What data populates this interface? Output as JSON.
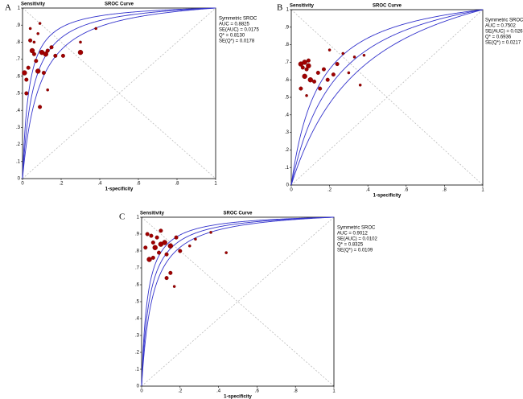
{
  "chart_data": [
    {
      "type": "scatter",
      "panel": "A",
      "title": "SROC Curve",
      "y_label": "Sensitivity",
      "x_label": "1-specificity",
      "legend_title": "Symmetric SROC",
      "stats": [
        {
          "value": 0.8825,
          "label": "AUC = 0.8825"
        },
        {
          "value": 0.0175,
          "label": "SE(AUC) = 0.0175"
        },
        {
          "value": 0.813,
          "label": "Q* = 0.8130"
        },
        {
          "value": 0.0178,
          "label": "SE(Q*) = 0.0178"
        }
      ],
      "x": [
        0.01,
        0.02,
        0.03,
        0.04,
        0.04,
        0.05,
        0.06,
        0.07,
        0.08,
        0.08,
        0.09,
        0.09,
        0.1,
        0.11,
        0.12,
        0.13,
        0.13,
        0.15,
        0.17,
        0.21,
        0.3,
        0.3,
        0.02,
        0.06,
        0.38
      ],
      "values": [
        0.62,
        0.5,
        0.65,
        0.81,
        0.88,
        0.75,
        0.73,
        0.69,
        0.63,
        0.85,
        0.91,
        0.42,
        0.74,
        0.62,
        0.73,
        0.75,
        0.52,
        0.77,
        0.72,
        0.72,
        0.74,
        0.8,
        0.58,
        0.8,
        0.88
      ],
      "sizes": [
        3,
        2,
        2,
        2,
        1,
        3,
        2,
        2,
        3,
        1,
        1,
        2,
        3,
        2,
        3,
        2,
        1,
        2,
        2,
        2,
        3,
        1,
        2,
        1,
        1
      ],
      "xlim": [
        0,
        1
      ],
      "ylim": [
        0,
        1
      ],
      "color": "#a00000",
      "curve_color": "#3333cc",
      "xticks": [
        0,
        {
          "value": 0.2,
          "label": ".2"
        },
        {
          "value": 0.4,
          "label": ".4"
        },
        {
          "value": 0.6,
          "label": ".6"
        },
        {
          "value": 0.8,
          "label": ".8"
        },
        1
      ],
      "yticks": [
        0,
        {
          "value": 0.1,
          "label": ".1"
        },
        {
          "value": 0.2,
          "label": ".2"
        },
        {
          "value": 0.3,
          "label": ".3"
        },
        {
          "value": 0.4,
          "label": ".4"
        },
        {
          "value": 0.5,
          "label": ".5"
        },
        {
          "value": 0.6,
          "label": ".6"
        },
        {
          "value": 0.7,
          "label": ".7"
        },
        {
          "value": 0.8,
          "label": ".8"
        },
        {
          "value": 0.9,
          "label": ".9"
        },
        1
      ]
    },
    {
      "type": "scatter",
      "panel": "B",
      "title": "SROC Curve",
      "y_label": "Sensitivity",
      "x_label": "1-specificity",
      "legend_title": "Symmetric SROC",
      "stats": [
        {
          "value": 0.7502,
          "label": "AUC = 0.7502"
        },
        {
          "value": 0.0263,
          "label": "SE(AUC) = 0.0263"
        },
        {
          "value": 0.6936,
          "label": "Q* = 0.6936"
        },
        {
          "value": 0.0217,
          "label": "SE(Q*) = 0.0217"
        }
      ],
      "x": [
        0.05,
        0.06,
        0.07,
        0.08,
        0.09,
        0.05,
        0.07,
        0.1,
        0.12,
        0.14,
        0.08,
        0.15,
        0.17,
        0.19,
        0.2,
        0.22,
        0.24,
        0.27,
        0.3,
        0.33,
        0.36,
        0.38,
        0.09
      ],
      "values": [
        0.69,
        0.67,
        0.7,
        0.66,
        0.68,
        0.55,
        0.62,
        0.6,
        0.59,
        0.64,
        0.51,
        0.55,
        0.66,
        0.6,
        0.77,
        0.63,
        0.69,
        0.75,
        0.64,
        0.73,
        0.57,
        0.74,
        0.71
      ],
      "sizes": [
        3,
        2,
        3,
        2,
        3,
        2,
        3,
        3,
        2,
        2,
        1,
        2,
        2,
        2,
        1,
        2,
        2,
        1,
        1,
        1,
        1,
        1,
        2
      ],
      "xlim": [
        0,
        1
      ],
      "ylim": [
        0,
        1
      ],
      "color": "#a00000",
      "curve_color": "#3333cc",
      "xticks": [
        0,
        {
          "value": 0.2,
          "label": ".2"
        },
        {
          "value": 0.4,
          "label": ".4"
        },
        {
          "value": 0.6,
          "label": ".6"
        },
        {
          "value": 0.8,
          "label": ".8"
        },
        1
      ],
      "yticks": [
        0,
        {
          "value": 0.1,
          "label": ".1"
        },
        {
          "value": 0.2,
          "label": ".2"
        },
        {
          "value": 0.3,
          "label": ".3"
        },
        {
          "value": 0.4,
          "label": ".4"
        },
        {
          "value": 0.5,
          "label": ".5"
        },
        {
          "value": 0.6,
          "label": ".6"
        },
        {
          "value": 0.7,
          "label": ".7"
        },
        {
          "value": 0.8,
          "label": ".8"
        },
        {
          "value": 0.9,
          "label": ".9"
        },
        1
      ]
    },
    {
      "type": "scatter",
      "panel": "C",
      "title": "SROC Curve",
      "y_label": "Sensitivity",
      "x_label": "1-specificity",
      "legend_title": "Symmetric SROC",
      "stats": [
        {
          "value": 0.9012,
          "label": "AUC = 0.9012"
        },
        {
          "value": 0.0102,
          "label": "SE(AUC) = 0.0102"
        },
        {
          "value": 0.8325,
          "label": "Q* = 0.8325"
        },
        {
          "value": 0.0109,
          "label": "SE(Q*) = 0.0109"
        }
      ],
      "x": [
        0.03,
        0.05,
        0.07,
        0.08,
        0.1,
        0.04,
        0.06,
        0.09,
        0.1,
        0.12,
        0.13,
        0.15,
        0.13,
        0.15,
        0.17,
        0.18,
        0.2,
        0.25,
        0.28,
        0.36,
        0.44,
        0.02,
        0.06
      ],
      "values": [
        0.9,
        0.89,
        0.82,
        0.88,
        0.92,
        0.75,
        0.76,
        0.79,
        0.84,
        0.85,
        0.78,
        0.83,
        0.64,
        0.67,
        0.59,
        0.88,
        0.8,
        0.83,
        0.87,
        0.91,
        0.79,
        0.82,
        0.85
      ],
      "sizes": [
        2,
        2,
        3,
        2,
        2,
        3,
        2,
        2,
        3,
        3,
        2,
        3,
        2,
        2,
        1,
        2,
        2,
        1,
        1,
        1,
        1,
        2,
        2
      ],
      "xlim": [
        0,
        1
      ],
      "ylim": [
        0,
        1
      ],
      "color": "#a00000",
      "curve_color": "#3333cc",
      "xticks": [
        0,
        {
          "value": 0.2,
          "label": ".2"
        },
        {
          "value": 0.4,
          "label": ".4"
        },
        {
          "value": 0.6,
          "label": ".6"
        },
        {
          "value": 0.8,
          "label": ".8"
        },
        1
      ],
      "yticks": [
        0,
        {
          "value": 0.1,
          "label": ".1"
        },
        {
          "value": 0.2,
          "label": ".2"
        },
        {
          "value": 0.3,
          "label": ".3"
        },
        {
          "value": 0.4,
          "label": ".4"
        },
        {
          "value": 0.5,
          "label": ".5"
        },
        {
          "value": 0.6,
          "label": ".6"
        },
        {
          "value": 0.7,
          "label": ".7"
        },
        {
          "value": 0.8,
          "label": ".8"
        },
        {
          "value": 0.9,
          "label": ".9"
        },
        1
      ]
    }
  ]
}
